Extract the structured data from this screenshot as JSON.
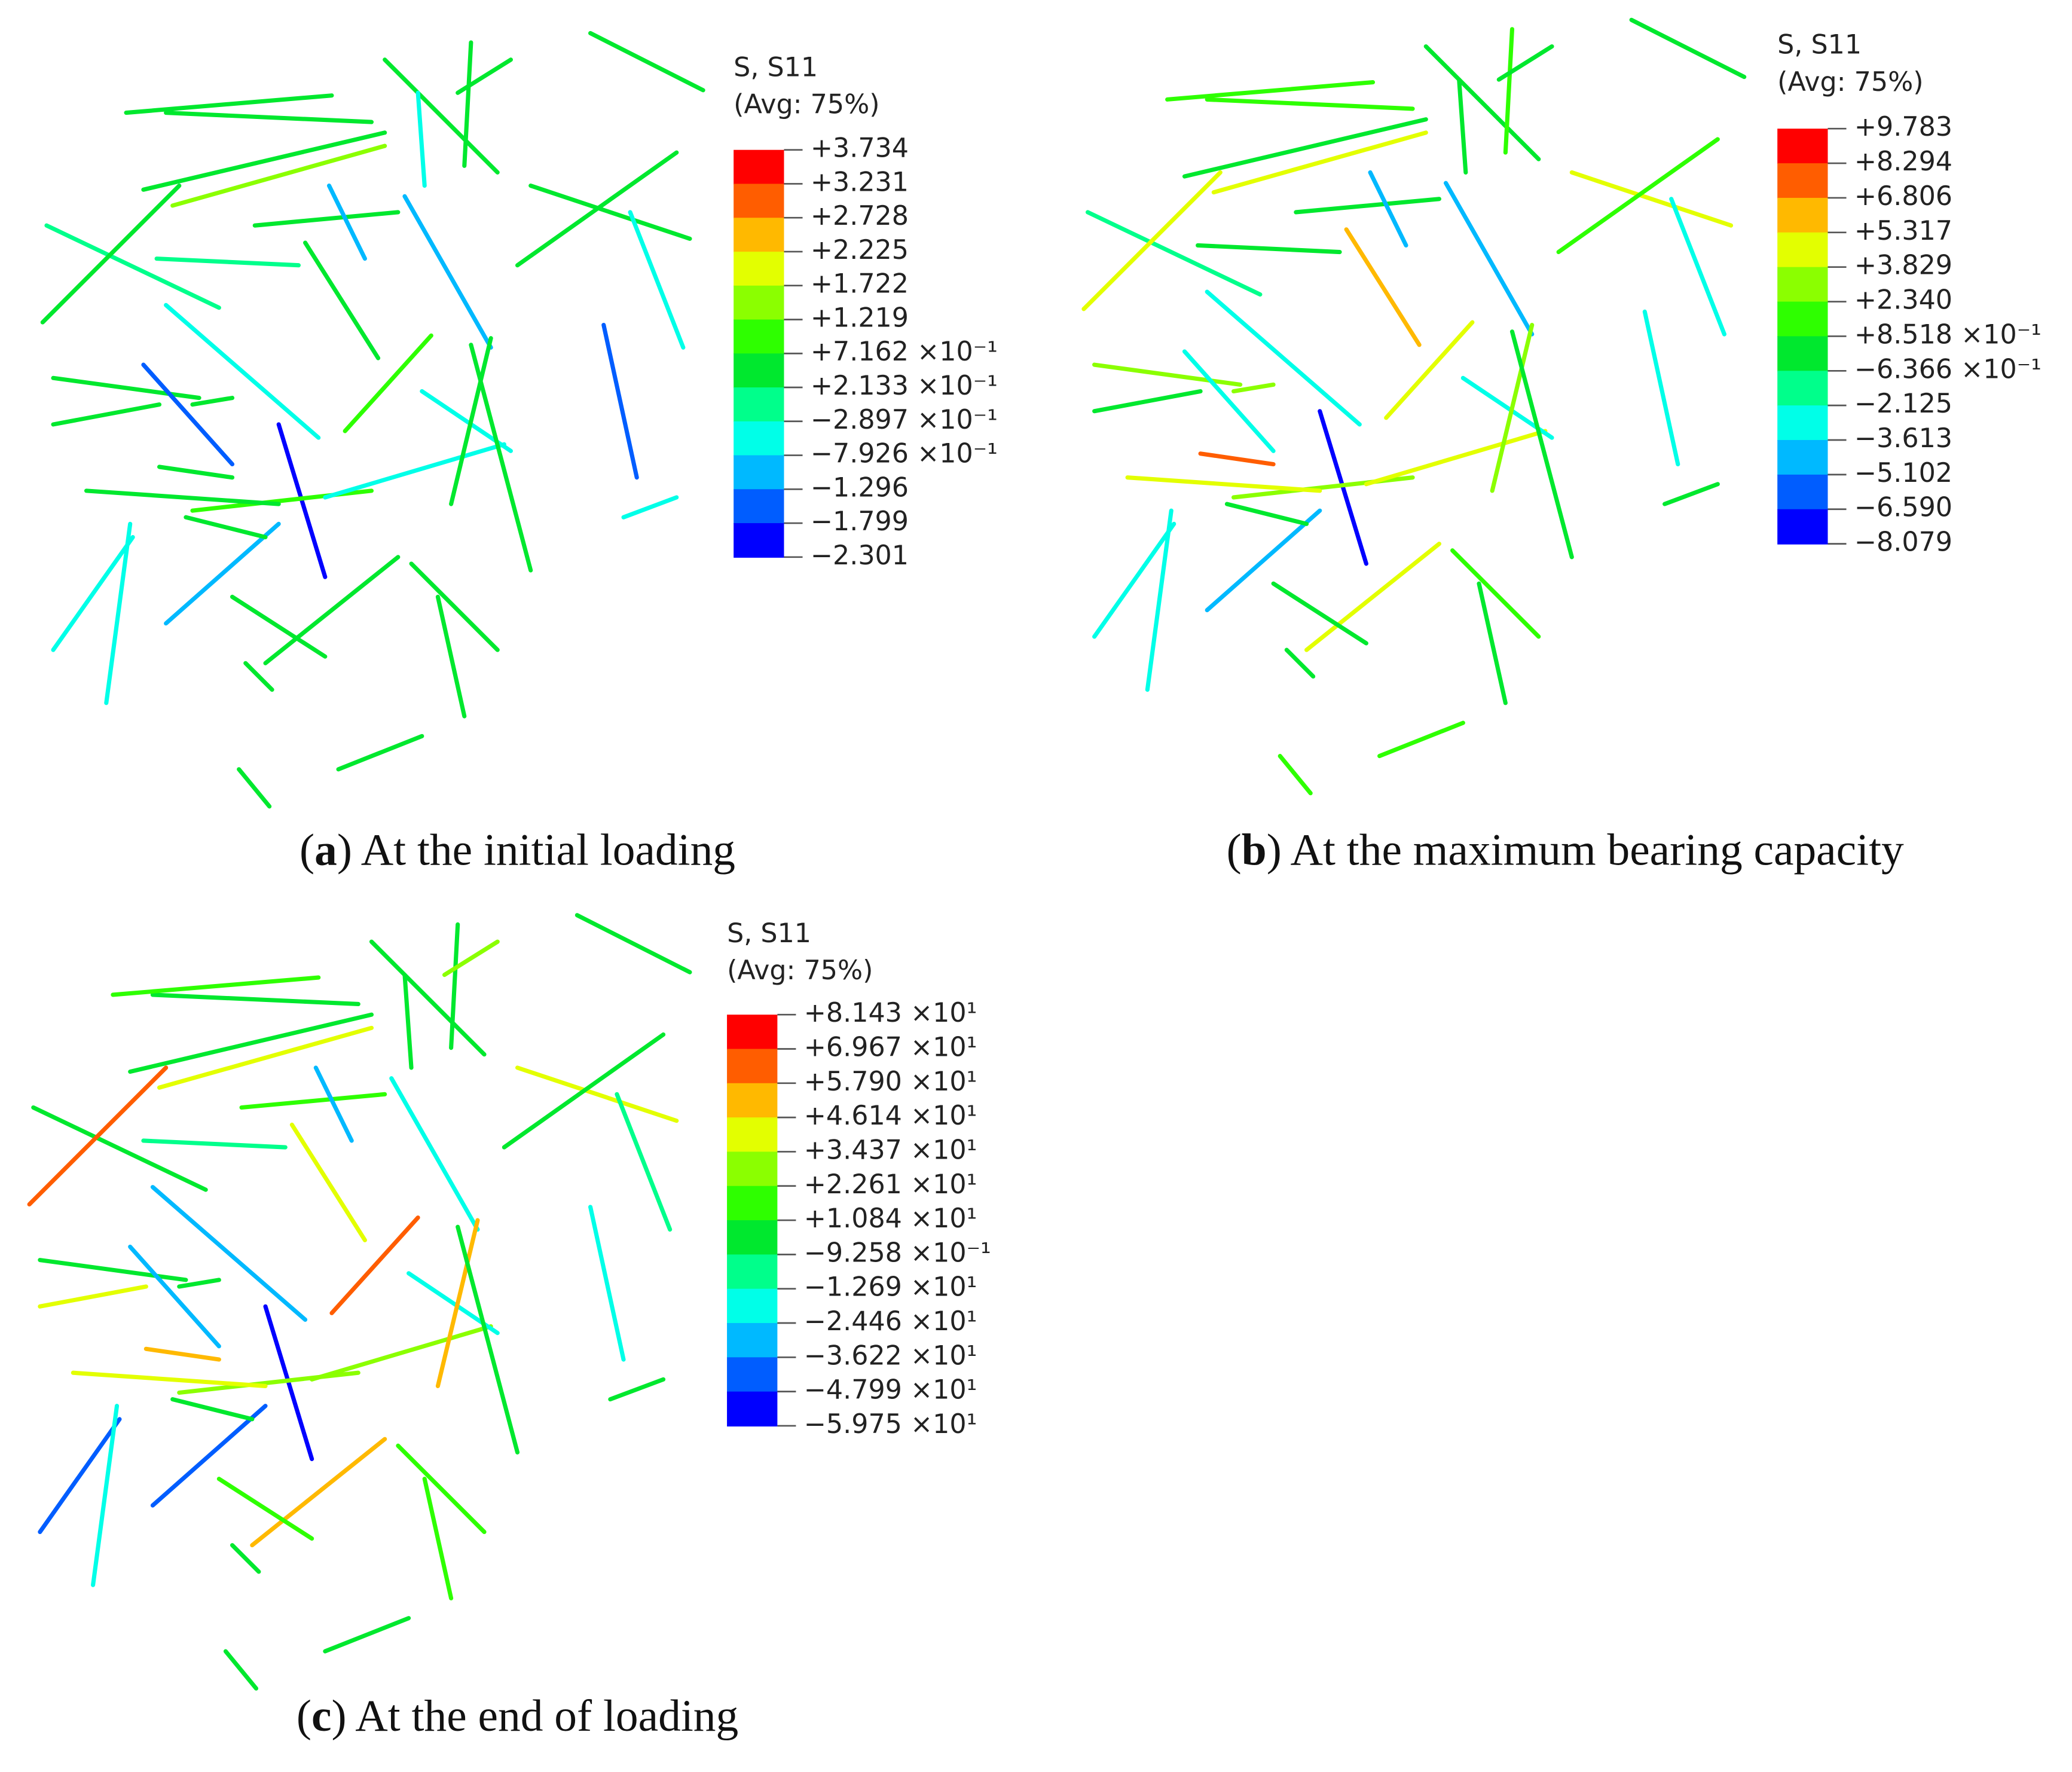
{
  "colors": [
    "#ff0000",
    "#ff5d00",
    "#ffb900",
    "#e3ff00",
    "#8bff00",
    "#2eff00",
    "#00e82e",
    "#00ff8b",
    "#00ffe8",
    "#00b9ff",
    "#005dff",
    "#0000ff"
  ],
  "panels": [
    {
      "legend": {
        "title": [
          "S, S11",
          "(Avg: 75%)"
        ],
        "labels": [
          "+3.734",
          "+3.231",
          "+2.728",
          "+2.225",
          "+1.722",
          "+1.219",
          "+7.162 ×10⁻¹",
          "+2.133 ×10⁻¹",
          "−2.897 ×10⁻¹",
          "−7.926 ×10⁻¹",
          "−1.296",
          "−1.799",
          "−2.301"
        ]
      },
      "caption": {
        "open": "(",
        "label": "a",
        "text": ") At the initial loading"
      }
    },
    {
      "legend": {
        "title": [
          "S, S11",
          "(Avg: 75%)"
        ],
        "labels": [
          "+9.783",
          "+8.294",
          "+6.806",
          "+5.317",
          "+3.829",
          "+2.340",
          "+8.518 ×10⁻¹",
          "−6.366 ×10⁻¹",
          "−2.125",
          "−3.613",
          "−5.102",
          "−6.590",
          "−8.079"
        ]
      },
      "caption": {
        "open": "(",
        "label": "b",
        "text": ") At the maximum bearing capacity"
      }
    },
    {
      "legend": {
        "title": [
          "S, S11",
          "(Avg: 75%)"
        ],
        "labels": [
          "+8.143 ×10¹",
          "+6.967 ×10¹",
          "+5.790 ×10¹",
          "+4.614 ×10¹",
          "+3.437 ×10¹",
          "+2.261 ×10¹",
          "+1.084 ×10¹",
          "−9.258 ×10⁻¹",
          "−1.269 ×10¹",
          "−2.446 ×10¹",
          "−3.622 ×10¹",
          "−4.799 ×10¹",
          "−5.975 ×10¹"
        ]
      },
      "caption": {
        "open": "(",
        "label": "c",
        "text": ") At the end of loading"
      }
    }
  ]
}
